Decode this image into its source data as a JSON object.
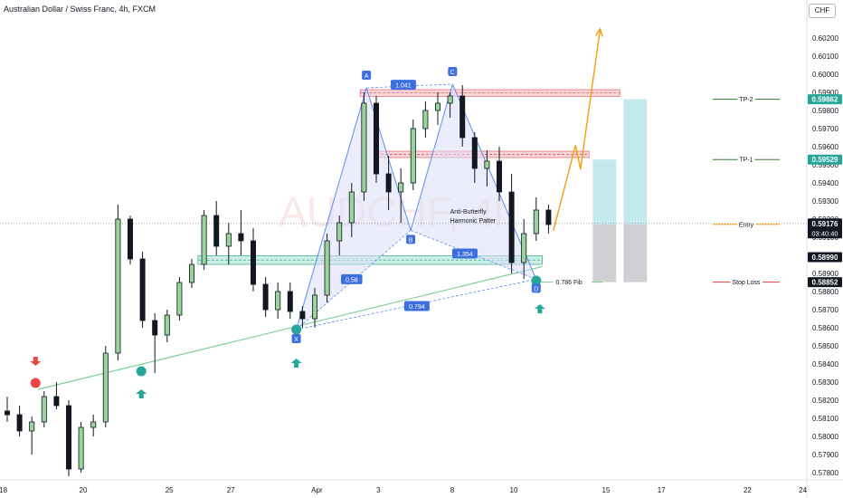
{
  "title": "Australian Dollar / Swiss Franc, 4h, FXCM",
  "currency": "CHF",
  "watermark": "AUDCHF, 4h",
  "chart_data": {
    "type": "candlestick",
    "y_ticks": [
      "0.60200",
      "0.60100",
      "0.60000",
      "0.59900",
      "0.59800",
      "0.59700",
      "0.59600",
      "0.59500",
      "0.59400",
      "0.59300",
      "0.59200",
      "0.59100",
      "0.59000",
      "0.58900",
      "0.58800",
      "0.58700",
      "0.58600",
      "0.58500",
      "0.58400",
      "0.58300",
      "0.58200",
      "0.58100",
      "0.58000",
      "0.57900",
      "0.57800"
    ],
    "y_tick_values": [
      0.602,
      0.601,
      0.6,
      0.599,
      0.598,
      0.597,
      0.596,
      0.595,
      0.594,
      0.593,
      0.592,
      0.591,
      0.59,
      0.589,
      0.588,
      0.587,
      0.586,
      0.585,
      0.584,
      0.583,
      0.582,
      0.581,
      0.58,
      0.579,
      0.578
    ],
    "ylim": [
      0.5775,
      0.603
    ],
    "x_ticks": [
      "18",
      "20",
      "25",
      "27",
      "Apr",
      "3",
      "8",
      "10",
      "15",
      "17",
      "22",
      "24"
    ],
    "x_tick_index": [
      -1.5,
      5,
      12,
      17,
      24,
      29,
      35,
      40,
      47.5,
      52,
      59,
      63.5
    ],
    "x_index_range": [
      -2,
      66
    ],
    "last_index": 48.5,
    "candles": [
      [
        0.5814,
        0.5822,
        0.5808,
        0.5812
      ],
      [
        0.5812,
        0.5817,
        0.58,
        0.5803
      ],
      [
        0.5803,
        0.5811,
        0.579,
        0.5808
      ],
      [
        0.5808,
        0.5825,
        0.5805,
        0.5822
      ],
      [
        0.5822,
        0.583,
        0.5815,
        0.5817
      ],
      [
        0.5817,
        0.582,
        0.5778,
        0.5782
      ],
      [
        0.5782,
        0.5808,
        0.578,
        0.5805
      ],
      [
        0.5805,
        0.5812,
        0.58,
        0.5808
      ],
      [
        0.5808,
        0.585,
        0.5805,
        0.5846
      ],
      [
        0.5846,
        0.5928,
        0.5842,
        0.592
      ],
      [
        0.592,
        0.5922,
        0.5895,
        0.5898
      ],
      [
        0.5898,
        0.5902,
        0.586,
        0.5864
      ],
      [
        0.5864,
        0.5868,
        0.5835,
        0.5856
      ],
      [
        0.5856,
        0.587,
        0.5852,
        0.5867
      ],
      [
        0.5867,
        0.5888,
        0.5864,
        0.5885
      ],
      [
        0.5885,
        0.5898,
        0.5882,
        0.5895
      ],
      [
        0.5895,
        0.5925,
        0.5892,
        0.5922
      ],
      [
        0.5922,
        0.593,
        0.59,
        0.5905
      ],
      [
        0.5905,
        0.5918,
        0.5895,
        0.5912
      ],
      [
        0.5912,
        0.5925,
        0.59,
        0.5908
      ],
      [
        0.5908,
        0.5915,
        0.588,
        0.5884
      ],
      [
        0.5884,
        0.5888,
        0.5866,
        0.587
      ],
      [
        0.587,
        0.5885,
        0.5865,
        0.588
      ],
      [
        0.588,
        0.5885,
        0.5865,
        0.5869
      ],
      [
        0.5869,
        0.5872,
        0.586,
        0.5865
      ],
      [
        0.5865,
        0.5882,
        0.586,
        0.5878
      ],
      [
        0.5878,
        0.5912,
        0.5874,
        0.5908
      ],
      [
        0.5908,
        0.5922,
        0.59,
        0.5918
      ],
      [
        0.5918,
        0.594,
        0.591,
        0.5935
      ],
      [
        0.5935,
        0.599,
        0.593,
        0.5984
      ],
      [
        0.5984,
        0.5988,
        0.594,
        0.5945
      ],
      [
        0.5945,
        0.5955,
        0.5925,
        0.5935
      ],
      [
        0.5935,
        0.5948,
        0.5918,
        0.594
      ],
      [
        0.594,
        0.5975,
        0.5936,
        0.597
      ],
      [
        0.597,
        0.5985,
        0.5965,
        0.598
      ],
      [
        0.598,
        0.599,
        0.5972,
        0.5984
      ],
      [
        0.5984,
        0.599,
        0.5976,
        0.5988
      ],
      [
        0.5988,
        0.5994,
        0.596,
        0.5965
      ],
      [
        0.5965,
        0.5968,
        0.594,
        0.5948
      ],
      [
        0.5948,
        0.5958,
        0.5938,
        0.5952
      ],
      [
        0.5952,
        0.596,
        0.593,
        0.5935
      ],
      [
        0.5935,
        0.5945,
        0.589,
        0.5896
      ],
      [
        0.5896,
        0.592,
        0.5887,
        0.5912
      ],
      [
        0.5912,
        0.5932,
        0.5908,
        0.5925
      ],
      [
        0.5925,
        0.5928,
        0.5912,
        0.5917
      ]
    ],
    "candle_index": [
      0,
      1,
      2,
      3,
      4,
      5,
      6,
      7,
      8,
      9,
      10,
      11,
      12,
      13,
      14,
      15,
      16,
      17,
      18,
      19,
      20,
      21,
      22,
      23,
      24,
      25,
      26,
      27,
      28,
      29,
      30,
      31,
      32,
      33,
      34,
      35,
      36,
      37,
      38,
      39,
      40,
      41,
      42,
      43,
      44
    ],
    "candle_x_scale": [
      -1,
      48
    ],
    "pattern_points": [
      {
        "label": "X",
        "i": 23.5,
        "price": 0.5859
      },
      {
        "label": "A",
        "i": 29.2,
        "price": 0.59925
      },
      {
        "label": "B",
        "i": 32.8,
        "price": 0.59138
      },
      {
        "label": "C",
        "i": 36.2,
        "price": 0.59945
      },
      {
        "label": "D",
        "i": 43.0,
        "price": 0.58868
      }
    ],
    "ratios": [
      {
        "text": "1.041",
        "i": 32.2,
        "price": 0.59942
      },
      {
        "text": "0.58",
        "i": 28.0,
        "price": 0.58868
      },
      {
        "text": "1.354",
        "i": 37.2,
        "price": 0.5901
      },
      {
        "text": "0.794",
        "i": 33.3,
        "price": 0.5872
      }
    ],
    "pattern_name": [
      "Anti-Butterfly",
      "Harmonic Patter"
    ],
    "zones": [
      {
        "top": 0.59915,
        "bottom": 0.59878,
        "i0": 28.7,
        "i1": 49.8
      },
      {
        "top": 0.59575,
        "bottom": 0.5954,
        "i0": 30.0,
        "i1": 47.3
      },
      {
        "top": 0.58998,
        "bottom": 0.5895,
        "i0": 15.5,
        "i1": 43.5
      }
    ],
    "trendline": {
      "from": {
        "i": 2.5,
        "price": 0.5826
      },
      "to": {
        "i": 43.5,
        "price": 0.58938
      }
    },
    "projection": [
      {
        "i": 44.4,
        "price": 0.59138
      },
      {
        "i": 46.2,
        "price": 0.59608
      },
      {
        "i": 46.6,
        "price": 0.59475
      },
      {
        "i": 48.2,
        "price": 0.6025
      }
    ],
    "position": {
      "entry": 0.59171,
      "tp1": 0.59529,
      "tp2": 0.59862,
      "stop": 0.58852,
      "tp1_i": [
        47.6,
        49.5
      ],
      "tp2_i": [
        50.1,
        52.0
      ],
      "labels": {
        "tp2": "TP-2",
        "tp1": "TP-1",
        "entry": "Entry",
        "stop": "Stop Loss"
      }
    },
    "fib_label": "0.786 Fib",
    "fib_price": 0.58852,
    "markers": [
      {
        "type": "down-arrow",
        "i": 2.3,
        "price": 0.584
      },
      {
        "type": "up-arrow",
        "i": 10.9,
        "price": 0.5825
      },
      {
        "type": "up-arrow",
        "i": 23.5,
        "price": 0.5842
      },
      {
        "type": "up-arrow",
        "i": 43.3,
        "price": 0.5872
      }
    ],
    "circles": [
      {
        "color": "#ef4444",
        "i": 2.3,
        "price": 0.58295
      },
      {
        "color": "#26a69a",
        "i": 10.9,
        "price": 0.5836
      },
      {
        "color": "#26a69a",
        "i": 23.5,
        "price": 0.5859
      },
      {
        "color": "#26a69a",
        "i": 43.0,
        "price": 0.5886
      }
    ],
    "price_tags": [
      {
        "text": "0.59862",
        "price": 0.59862,
        "bg": "#26a69a",
        "fg": "#ffffff"
      },
      {
        "text": "0.59529",
        "price": 0.59529,
        "bg": "#26a69a",
        "fg": "#ffffff"
      },
      {
        "text": "0.59176",
        "sub": "03:40:40",
        "price": 0.59176,
        "bg": "#131722",
        "fg": "#ffffff"
      },
      {
        "text": "0.58990",
        "price": 0.5899,
        "bg": "#131722",
        "fg": "#ffffff"
      },
      {
        "text": "0.58852",
        "price": 0.58852,
        "bg": "#131722",
        "fg": "#ffffff"
      }
    ]
  }
}
